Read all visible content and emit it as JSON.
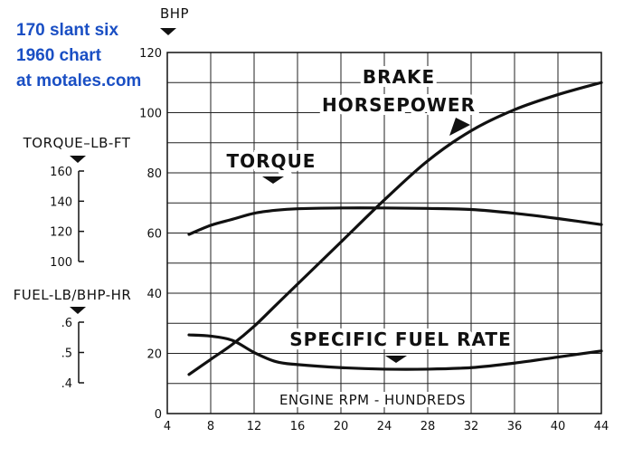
{
  "overlay": {
    "line1": "170 slant six",
    "line2": "1960 chart",
    "line3": "at motales.com",
    "color": "#1a4fc4"
  },
  "chart_data": {
    "type": "line",
    "xlabel": "ENGINE RPM - HUNDREDS",
    "x_ticks": [
      "4",
      "8",
      "12",
      "16",
      "20",
      "24",
      "28",
      "32",
      "36",
      "40",
      "44"
    ],
    "xlim": [
      4,
      44
    ],
    "axes": {
      "bhp": {
        "label": "BHP",
        "ticks": [
          "0",
          "20",
          "40",
          "60",
          "80",
          "100",
          "120"
        ],
        "ylim": [
          0,
          120
        ]
      },
      "torque": {
        "label": "TORQUE–LB-FT",
        "ticks": [
          "100",
          "120",
          "140",
          "160"
        ],
        "ylim": [
          100,
          160
        ]
      },
      "fuel": {
        "label": "FUEL-LB/BHP-HR",
        "ticks": [
          ".4",
          ".5",
          ".6"
        ],
        "ylim": [
          0.4,
          0.6
        ]
      }
    },
    "grid": true,
    "series": [
      {
        "name": "BRAKE HORSEPOWER",
        "label_lines": [
          "BRAKE",
          "HORSEPOWER"
        ],
        "axis": "bhp",
        "x": [
          6,
          8,
          10,
          12,
          14,
          16,
          20,
          24,
          28,
          32,
          36,
          40,
          44
        ],
        "values": [
          13,
          18,
          23,
          29,
          36,
          43,
          57,
          71,
          84,
          94,
          101,
          106,
          110
        ]
      },
      {
        "name": "TORQUE",
        "label_lines": [
          "TORQUE"
        ],
        "axis": "torque",
        "x": [
          6,
          8,
          10,
          12,
          14,
          16,
          20,
          24,
          28,
          32,
          36,
          40,
          44
        ],
        "values": [
          118,
          124,
          128,
          132,
          134,
          135,
          135.5,
          135.5,
          135.2,
          134.5,
          132,
          128.5,
          124.5
        ]
      },
      {
        "name": "SPECIFIC FUEL RATE",
        "label_lines": [
          "SPECIFIC FUEL RATE"
        ],
        "axis": "fuel",
        "x": [
          6,
          8,
          10,
          12,
          14,
          16,
          20,
          24,
          28,
          32,
          36,
          40,
          44
        ],
        "values": [
          0.558,
          0.554,
          0.54,
          0.5,
          0.47,
          0.46,
          0.45,
          0.445,
          0.445,
          0.45,
          0.465,
          0.485,
          0.505
        ]
      }
    ]
  }
}
